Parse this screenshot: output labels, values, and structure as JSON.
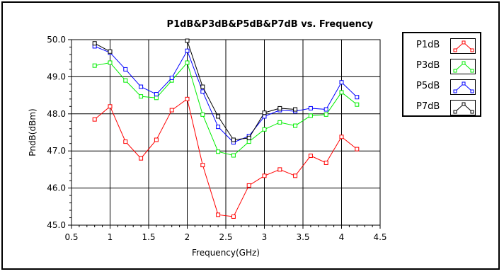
{
  "chart_data": {
    "type": "line",
    "title": "P1dB&P3dB&P5dB&P7dB vs. Frequency",
    "xlabel": "Frequency(GHz)",
    "ylabel": "PndB(dBm)",
    "xlim": [
      0.5,
      4.5
    ],
    "ylim": [
      45.0,
      50.0
    ],
    "x_ticks": [
      "0.5",
      "1",
      "1.5",
      "2",
      "2.5",
      "3",
      "3.5",
      "4",
      "4.5"
    ],
    "y_ticks": [
      "45.0",
      "46.0",
      "47.0",
      "48.0",
      "49.0",
      "50.0"
    ],
    "grid": true,
    "legend_position": "right",
    "x": [
      0.8,
      1.0,
      1.2,
      1.4,
      1.6,
      1.8,
      2.0,
      2.2,
      2.4,
      2.6,
      2.8,
      3.0,
      3.2,
      3.4,
      3.6,
      3.8,
      4.0,
      4.2
    ],
    "series": [
      {
        "name": "P1dB",
        "color": "#ff0000",
        "values": [
          47.85,
          48.2,
          47.25,
          46.8,
          47.3,
          48.1,
          48.4,
          46.62,
          45.28,
          45.23,
          46.07,
          46.33,
          46.5,
          46.33,
          46.87,
          46.68,
          47.38,
          47.05
        ]
      },
      {
        "name": "P3dB",
        "color": "#00ee00",
        "values": [
          49.3,
          49.38,
          48.9,
          48.47,
          48.43,
          48.9,
          49.38,
          47.98,
          46.98,
          46.88,
          47.25,
          47.58,
          47.77,
          47.68,
          47.95,
          47.98,
          48.58,
          48.25
        ]
      },
      {
        "name": "P5dB",
        "color": "#0000ff",
        "values": [
          49.82,
          49.65,
          49.2,
          48.73,
          48.53,
          48.97,
          49.7,
          48.6,
          47.65,
          47.23,
          47.4,
          47.93,
          48.1,
          48.07,
          48.15,
          48.12,
          48.85,
          48.45
        ]
      },
      {
        "name": "P7dB",
        "color": "#000000",
        "values": [
          49.9,
          49.68,
          null,
          null,
          null,
          null,
          49.97,
          48.73,
          47.93,
          47.3,
          47.35,
          48.03,
          48.15,
          48.12,
          null,
          null,
          null,
          null
        ]
      }
    ]
  },
  "legend": {
    "entries": [
      {
        "label": "P1dB",
        "color": "#ff0000"
      },
      {
        "label": "P3dB",
        "color": "#00ee00"
      },
      {
        "label": "P5dB",
        "color": "#0000ff"
      },
      {
        "label": "P7dB",
        "color": "#000000"
      }
    ]
  }
}
